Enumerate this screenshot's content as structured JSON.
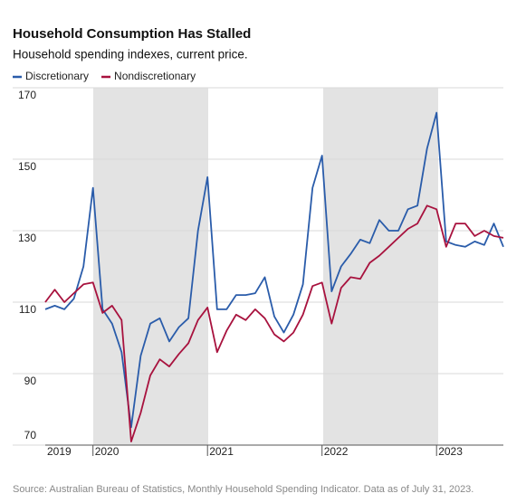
{
  "chart_data": {
    "type": "line",
    "title": "Household Consumption Has Stalled",
    "subtitle": "Household spending indexes, current price.",
    "source": "Source: Australian Bureau of Statistics, Monthly Household Spending Indicator. Data as of July 31, 2023.",
    "categories": [
      "2019",
      null,
      null,
      null,
      null,
      "2020",
      null,
      null,
      null,
      null,
      null,
      null,
      null,
      null,
      null,
      null,
      null,
      "2021",
      null,
      null,
      null,
      null,
      null,
      null,
      null,
      null,
      null,
      null,
      null,
      "2022",
      null,
      null,
      null,
      null,
      null,
      null,
      null,
      null,
      null,
      null,
      null,
      "2023",
      null,
      null,
      null,
      null,
      null,
      null,
      null
    ],
    "series": [
      {
        "name": "Discretionary",
        "color": "#2a5caa",
        "values": [
          108,
          109,
          108,
          111,
          120,
          142,
          108,
          104,
          96,
          75,
          95,
          104,
          105.5,
          99,
          103,
          105.5,
          130,
          145,
          108,
          108,
          112,
          112,
          112.5,
          117,
          106,
          101.5,
          106.5,
          115,
          142,
          151,
          113,
          120,
          123.5,
          127.5,
          126.5,
          133,
          130,
          130,
          136,
          137,
          153,
          163,
          127,
          126,
          125.5,
          127,
          126,
          132,
          125.5
        ]
      },
      {
        "name": "Nondiscretionary",
        "color": "#a8123e",
        "values": [
          110,
          113.5,
          110,
          112.5,
          115,
          115.5,
          107,
          109,
          105,
          71,
          79,
          89.5,
          94,
          92,
          95.5,
          98.5,
          105,
          108.5,
          96,
          102,
          106.5,
          105,
          108,
          105.5,
          101,
          99,
          101.5,
          106.5,
          114.5,
          115.5,
          104,
          114,
          117,
          116.5,
          121,
          123,
          125.5,
          128,
          130.5,
          132,
          137,
          136,
          125.5,
          132,
          132,
          128.5,
          130,
          128.5,
          128
        ]
      }
    ],
    "ylim": [
      70,
      170
    ],
    "yticks": [
      70,
      90,
      110,
      130,
      150,
      170
    ],
    "grid": true,
    "legend": "top-left"
  }
}
